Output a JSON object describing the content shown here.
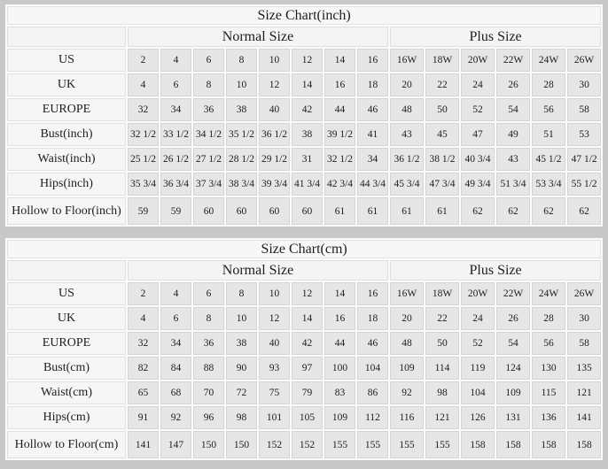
{
  "tables": [
    {
      "title": "Size Chart(inch)",
      "group_headers": [
        {
          "label": "Normal Size",
          "span": 8
        },
        {
          "label": "Plus Size",
          "span": 6
        }
      ],
      "rows": [
        {
          "label": "US",
          "values": [
            "2",
            "4",
            "6",
            "8",
            "10",
            "12",
            "14",
            "16",
            "16W",
            "18W",
            "20W",
            "22W",
            "24W",
            "26W"
          ]
        },
        {
          "label": "UK",
          "values": [
            "4",
            "6",
            "8",
            "10",
            "12",
            "14",
            "16",
            "18",
            "20",
            "22",
            "24",
            "26",
            "28",
            "30"
          ]
        },
        {
          "label": "EUROPE",
          "values": [
            "32",
            "34",
            "36",
            "38",
            "40",
            "42",
            "44",
            "46",
            "48",
            "50",
            "52",
            "54",
            "56",
            "58"
          ]
        },
        {
          "label": "Bust(inch)",
          "values": [
            "32 1/2",
            "33 1/2",
            "34 1/2",
            "35 1/2",
            "36 1/2",
            "38",
            "39 1/2",
            "41",
            "43",
            "45",
            "47",
            "49",
            "51",
            "53"
          ]
        },
        {
          "label": "Waist(inch)",
          "values": [
            "25 1/2",
            "26 1/2",
            "27 1/2",
            "28 1/2",
            "29 1/2",
            "31",
            "32 1/2",
            "34",
            "36 1/2",
            "38 1/2",
            "40 3/4",
            "43",
            "45 1/2",
            "47 1/2"
          ]
        },
        {
          "label": "Hips(inch)",
          "values": [
            "35 3/4",
            "36 3/4",
            "37 3/4",
            "38 3/4",
            "39 3/4",
            "41 3/4",
            "42 3/4",
            "44 3/4",
            "45 3/4",
            "47 3/4",
            "49 3/4",
            "51 3/4",
            "53 3/4",
            "55 1/2"
          ]
        },
        {
          "label": "Hollow to Floor(inch)",
          "values": [
            "59",
            "59",
            "60",
            "60",
            "60",
            "60",
            "61",
            "61",
            "61",
            "61",
            "62",
            "62",
            "62",
            "62"
          ]
        }
      ]
    },
    {
      "title": "Size Chart(cm)",
      "group_headers": [
        {
          "label": "Normal Size",
          "span": 8
        },
        {
          "label": "Plus Size",
          "span": 6
        }
      ],
      "rows": [
        {
          "label": "US",
          "values": [
            "2",
            "4",
            "6",
            "8",
            "10",
            "12",
            "14",
            "16",
            "16W",
            "18W",
            "20W",
            "22W",
            "24W",
            "26W"
          ]
        },
        {
          "label": "UK",
          "values": [
            "4",
            "6",
            "8",
            "10",
            "12",
            "14",
            "16",
            "18",
            "20",
            "22",
            "24",
            "26",
            "28",
            "30"
          ]
        },
        {
          "label": "EUROPE",
          "values": [
            "32",
            "34",
            "36",
            "38",
            "40",
            "42",
            "44",
            "46",
            "48",
            "50",
            "52",
            "54",
            "56",
            "58"
          ]
        },
        {
          "label": "Bust(cm)",
          "values": [
            "82",
            "84",
            "88",
            "90",
            "93",
            "97",
            "100",
            "104",
            "109",
            "114",
            "119",
            "124",
            "130",
            "135"
          ]
        },
        {
          "label": "Waist(cm)",
          "values": [
            "65",
            "68",
            "70",
            "72",
            "75",
            "79",
            "83",
            "86",
            "92",
            "98",
            "104",
            "109",
            "115",
            "121"
          ]
        },
        {
          "label": "Hips(cm)",
          "values": [
            "91",
            "92",
            "96",
            "98",
            "101",
            "105",
            "109",
            "112",
            "116",
            "121",
            "126",
            "131",
            "136",
            "141"
          ]
        },
        {
          "label": "Hollow to Floor(cm)",
          "values": [
            "141",
            "147",
            "150",
            "150",
            "152",
            "152",
            "155",
            "155",
            "155",
            "155",
            "158",
            "158",
            "158",
            "158"
          ]
        }
      ]
    }
  ],
  "colors": {
    "page_background": "#c8c8c8",
    "table_background": "#fbfbfb",
    "header_cell_background": "#f4f4f4",
    "label_cell_background": "#f6f6f6",
    "data_cell_background": "#e6e6e6",
    "text": "#1d1d1d"
  }
}
